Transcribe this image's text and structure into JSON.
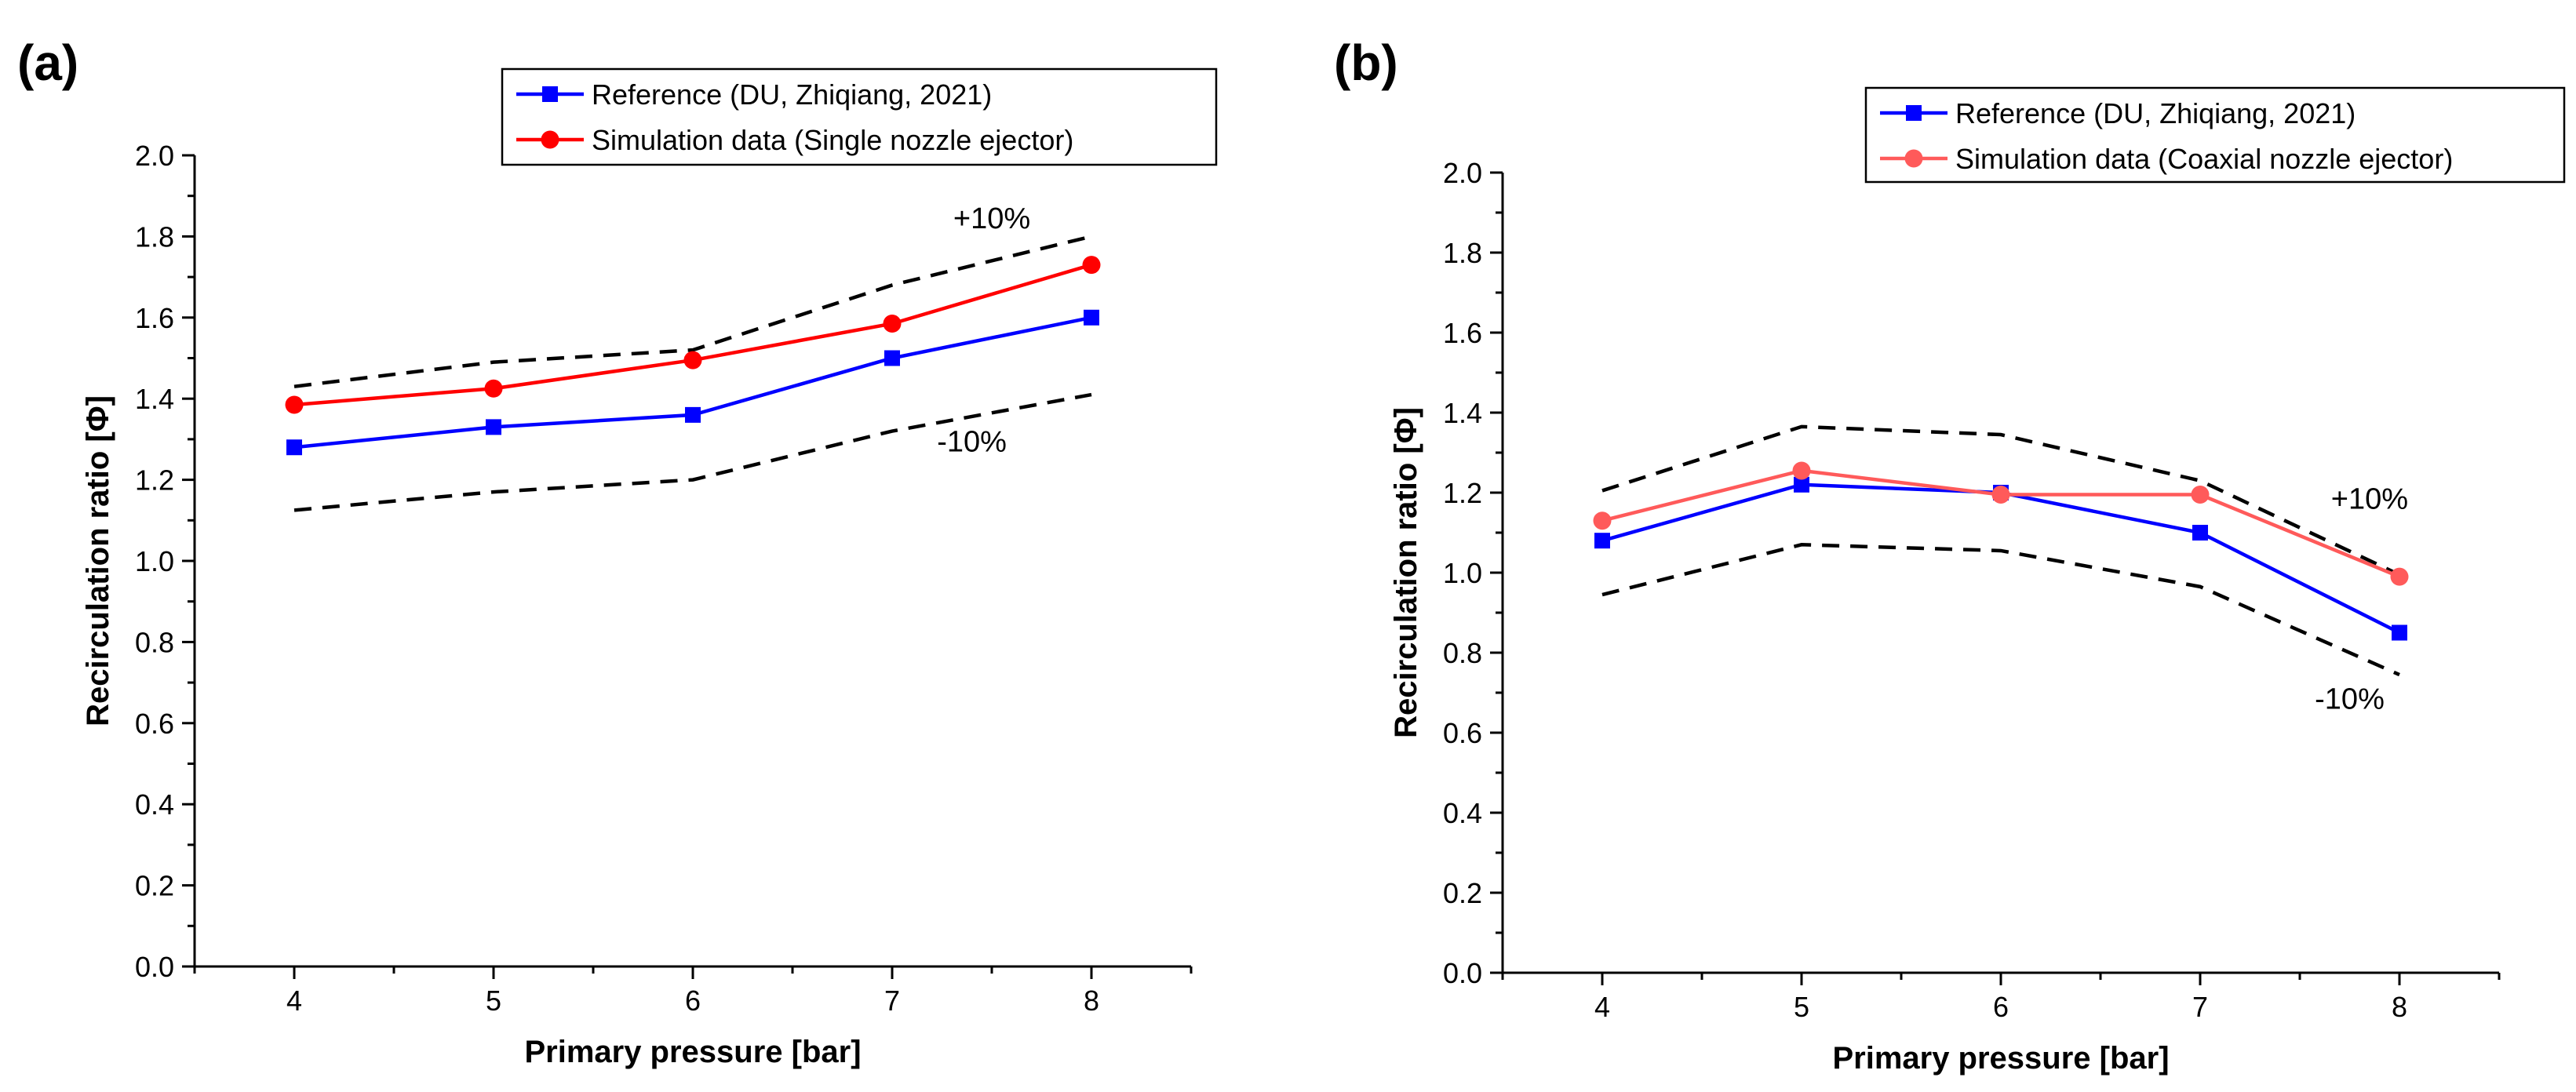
{
  "chart_data": [
    {
      "type": "line",
      "panel_label": "(a)",
      "xlabel": "Primary pressure [bar]",
      "ylabel": "Recirculation ratio [Φ]",
      "xlim": [
        3.5,
        8.5
      ],
      "ylim": [
        0.0,
        2.0
      ],
      "xticks": [
        4,
        5,
        6,
        7,
        8
      ],
      "yticks": [
        0.0,
        0.2,
        0.4,
        0.6,
        0.8,
        1.0,
        1.2,
        1.4,
        1.6,
        1.8,
        2.0
      ],
      "x": [
        4,
        5,
        6,
        7,
        8
      ],
      "legend_position": "top-right",
      "series": [
        {
          "name": "Reference (DU, Zhiqiang, 2021)",
          "color": "#0000ff",
          "marker": "square",
          "values": [
            1.28,
            1.33,
            1.36,
            1.5,
            1.6
          ]
        },
        {
          "name": "Simulation data (Single nozzle ejector)",
          "color": "#ff0000",
          "marker": "circle",
          "values": [
            1.385,
            1.425,
            1.495,
            1.585,
            1.73
          ]
        }
      ],
      "bands": [
        {
          "name": "+10%",
          "values": [
            1.43,
            1.49,
            1.52,
            1.68,
            1.8
          ]
        },
        {
          "name": "-10%",
          "values": [
            1.125,
            1.17,
            1.2,
            1.32,
            1.41
          ]
        }
      ],
      "annotations": [
        {
          "text": "+10%",
          "x": 7.5,
          "y": 1.82
        },
        {
          "text": "-10%",
          "x": 7.4,
          "y": 1.27
        }
      ]
    },
    {
      "type": "line",
      "panel_label": "(b)",
      "xlabel": "Primary pressure [bar]",
      "ylabel": "Recirculation ratio [Φ]",
      "xlim": [
        3.5,
        8.5
      ],
      "ylim": [
        0.0,
        2.0
      ],
      "xticks": [
        4,
        5,
        6,
        7,
        8
      ],
      "yticks": [
        0.0,
        0.2,
        0.4,
        0.6,
        0.8,
        1.0,
        1.2,
        1.4,
        1.6,
        1.8,
        2.0
      ],
      "x": [
        4,
        5,
        6,
        7,
        8
      ],
      "legend_position": "top-right",
      "series": [
        {
          "name": "Reference (DU, Zhiqiang, 2021)",
          "color": "#0000ff",
          "marker": "square",
          "values": [
            1.08,
            1.22,
            1.2,
            1.1,
            0.85
          ]
        },
        {
          "name": "Simulation data (Coaxial nozzle ejector)",
          "color": "#ff5a5a",
          "marker": "circle",
          "values": [
            1.13,
            1.255,
            1.195,
            1.195,
            0.99
          ]
        }
      ],
      "bands": [
        {
          "name": "+10%",
          "values": [
            1.205,
            1.365,
            1.345,
            1.23,
            0.995
          ]
        },
        {
          "name": "-10%",
          "values": [
            0.945,
            1.07,
            1.055,
            0.965,
            0.745
          ]
        }
      ],
      "annotations": [
        {
          "text": "+10%",
          "x": 7.85,
          "y": 1.16
        },
        {
          "text": "-10%",
          "x": 7.75,
          "y": 0.66
        }
      ]
    }
  ]
}
